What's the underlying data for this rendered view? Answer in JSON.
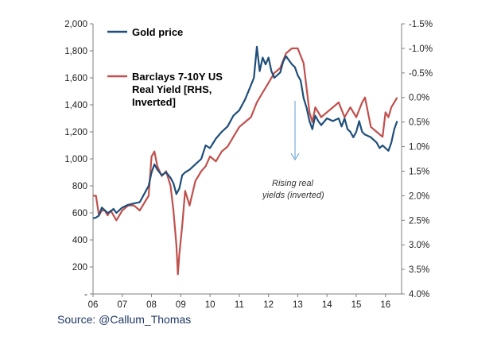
{
  "chart_data": {
    "type": "line",
    "title": "",
    "source": "Source: @Callum_Thomas",
    "annotation": [
      "Rising real",
      "yields (inverted)"
    ],
    "x_ticks": [
      "06",
      "07",
      "08",
      "09",
      "10",
      "11",
      "12",
      "13",
      "14",
      "15",
      "16"
    ],
    "x_range": [
      2006.0,
      2016.55
    ],
    "y_left": {
      "range": [
        0,
        2000
      ],
      "ticks": [
        0,
        200,
        400,
        600,
        800,
        1000,
        1200,
        1400,
        1600,
        1800,
        2000
      ],
      "tick_labels": [
        "-",
        "200",
        "400",
        "600",
        "800",
        "1,000",
        "1,200",
        "1,400",
        "1,600",
        "1,800",
        "2,000"
      ]
    },
    "y_right": {
      "range": [
        4.0,
        -1.5
      ],
      "inverted": true,
      "ticks": [
        -1.5,
        -1.0,
        -0.5,
        0.0,
        0.5,
        1.0,
        1.5,
        2.0,
        2.5,
        3.0,
        3.5,
        4.0
      ],
      "tick_labels": [
        "-1.5%",
        "-1.0%",
        "-0.5%",
        "0.0%",
        "0.5%",
        "1.0%",
        "1.5%",
        "2.0%",
        "2.5%",
        "3.0%",
        "3.5%",
        "4.0%"
      ]
    },
    "series": [
      {
        "name": "Gold price",
        "axis": "left",
        "color": "#1f4e79",
        "x": [
          2006.0,
          2006.1,
          2006.2,
          2006.3,
          2006.4,
          2006.5,
          2006.6,
          2006.7,
          2006.8,
          2006.9,
          2007.0,
          2007.2,
          2007.4,
          2007.6,
          2007.8,
          2007.9,
          2008.0,
          2008.1,
          2008.2,
          2008.35,
          2008.5,
          2008.65,
          2008.75,
          2008.85,
          2008.95,
          2009.05,
          2009.15,
          2009.3,
          2009.5,
          2009.7,
          2009.85,
          2010.0,
          2010.2,
          2010.4,
          2010.6,
          2010.8,
          2011.0,
          2011.2,
          2011.35,
          2011.5,
          2011.6,
          2011.7,
          2011.8,
          2011.9,
          2012.0,
          2012.1,
          2012.2,
          2012.4,
          2012.5,
          2012.6,
          2012.8,
          2012.9,
          2013.0,
          2013.1,
          2013.2,
          2013.3,
          2013.4,
          2013.5,
          2013.6,
          2013.7,
          2013.8,
          2014.0,
          2014.2,
          2014.4,
          2014.5,
          2014.6,
          2014.7,
          2014.8,
          2014.9,
          2015.0,
          2015.1,
          2015.2,
          2015.3,
          2015.5,
          2015.7,
          2015.8,
          2015.9,
          2016.0,
          2016.1,
          2016.2,
          2016.3,
          2016.4
        ],
        "values": [
          560,
          565,
          580,
          640,
          620,
          600,
          610,
          630,
          600,
          620,
          640,
          660,
          670,
          680,
          760,
          800,
          900,
          960,
          920,
          880,
          900,
          860,
          820,
          740,
          780,
          880,
          900,
          920,
          960,
          1000,
          1100,
          1080,
          1150,
          1200,
          1240,
          1320,
          1360,
          1440,
          1520,
          1600,
          1830,
          1650,
          1750,
          1700,
          1750,
          1650,
          1600,
          1640,
          1720,
          1760,
          1700,
          1680,
          1620,
          1580,
          1450,
          1380,
          1280,
          1220,
          1320,
          1280,
          1250,
          1300,
          1280,
          1300,
          1240,
          1300,
          1220,
          1200,
          1160,
          1200,
          1280,
          1200,
          1180,
          1160,
          1120,
          1080,
          1100,
          1080,
          1060,
          1120,
          1220,
          1280
        ]
      },
      {
        "name": "Barclays 7-10Y US Real Yield [RHS, Inverted]",
        "axis": "right",
        "color": "#c0504d",
        "x": [
          2006.0,
          2006.1,
          2006.2,
          2006.3,
          2006.4,
          2006.5,
          2006.6,
          2006.8,
          2007.0,
          2007.2,
          2007.4,
          2007.6,
          2007.8,
          2007.9,
          2008.0,
          2008.1,
          2008.2,
          2008.35,
          2008.5,
          2008.65,
          2008.75,
          2008.85,
          2008.9,
          2008.95,
          2009.05,
          2009.15,
          2009.3,
          2009.5,
          2009.7,
          2009.85,
          2010.0,
          2010.2,
          2010.4,
          2010.6,
          2010.8,
          2011.0,
          2011.2,
          2011.4,
          2011.6,
          2011.8,
          2012.0,
          2012.2,
          2012.4,
          2012.6,
          2012.8,
          2013.0,
          2013.2,
          2013.4,
          2013.5,
          2013.6,
          2013.8,
          2014.0,
          2014.2,
          2014.4,
          2014.6,
          2014.8,
          2015.0,
          2015.2,
          2015.3,
          2015.5,
          2015.7,
          2015.9,
          2016.0,
          2016.1,
          2016.2,
          2016.3,
          2016.4
        ],
        "values": [
          2.0,
          2.0,
          2.4,
          2.3,
          2.3,
          2.4,
          2.3,
          2.5,
          2.3,
          2.2,
          2.2,
          2.3,
          2.1,
          2.0,
          1.2,
          1.1,
          1.4,
          1.6,
          1.5,
          1.8,
          2.3,
          3.0,
          3.6,
          3.2,
          2.6,
          1.9,
          2.2,
          1.7,
          1.5,
          1.4,
          1.2,
          1.3,
          1.1,
          1.0,
          0.8,
          0.6,
          0.5,
          0.4,
          0.1,
          -0.1,
          -0.3,
          -0.5,
          -0.6,
          -0.9,
          -1.0,
          -1.0,
          -0.7,
          0.3,
          0.5,
          0.2,
          0.4,
          0.3,
          0.2,
          0.1,
          0.4,
          0.2,
          0.4,
          0.1,
          0.0,
          0.6,
          0.7,
          0.8,
          0.3,
          0.4,
          0.2,
          0.1,
          0.0
        ]
      }
    ]
  }
}
